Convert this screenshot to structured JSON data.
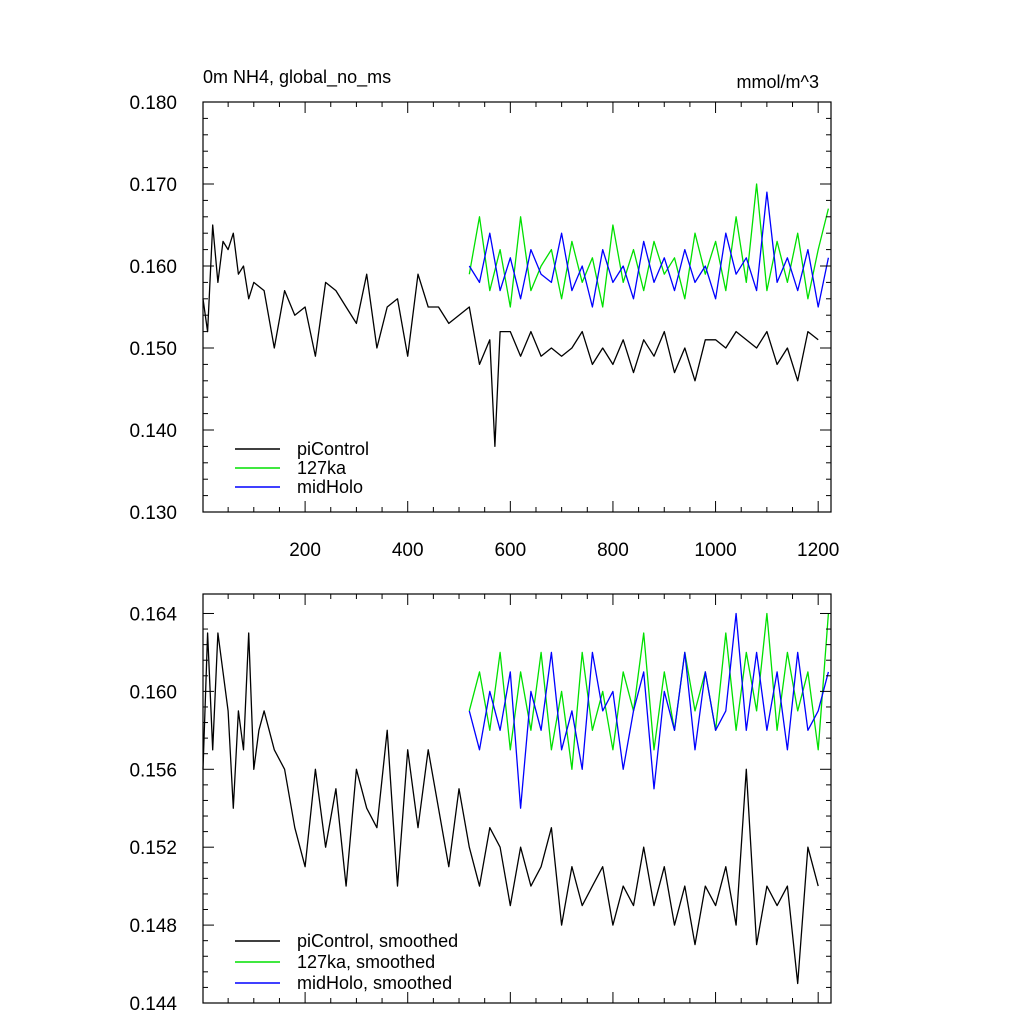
{
  "chart_data": [
    {
      "type": "line",
      "title": "0m NH4, global_no_ms",
      "unit_label": "mmol/m^3",
      "xlim": [
        1,
        1225
      ],
      "ylim": [
        0.13,
        0.18
      ],
      "xticks": [
        200,
        400,
        600,
        800,
        1000,
        1200
      ],
      "xtick_labels": [
        "200",
        "400",
        "600",
        "800",
        "1000",
        "1200"
      ],
      "yticks": [
        0.13,
        0.14,
        0.15,
        0.16,
        0.17,
        0.18
      ],
      "ytick_labels": [
        "0.130",
        "0.140",
        "0.150",
        "0.160",
        "0.170",
        "0.180"
      ],
      "grid": false,
      "legend_position": "bottom-left",
      "series": [
        {
          "name": "piControl",
          "color": "#000000",
          "x": [
            1,
            10,
            20,
            30,
            40,
            50,
            60,
            70,
            80,
            90,
            100,
            120,
            140,
            160,
            180,
            200,
            220,
            240,
            260,
            280,
            300,
            320,
            340,
            360,
            380,
            400,
            420,
            440,
            460,
            480,
            500,
            520,
            540,
            560,
            570,
            580,
            600,
            620,
            640,
            660,
            680,
            700,
            720,
            740,
            760,
            780,
            800,
            820,
            840,
            860,
            880,
            900,
            920,
            940,
            960,
            980,
            1000,
            1020,
            1040,
            1060,
            1080,
            1100,
            1120,
            1140,
            1160,
            1180,
            1200
          ],
          "y": [
            0.156,
            0.152,
            0.165,
            0.158,
            0.163,
            0.162,
            0.164,
            0.159,
            0.16,
            0.156,
            0.158,
            0.157,
            0.15,
            0.157,
            0.154,
            0.155,
            0.149,
            0.158,
            0.157,
            0.155,
            0.153,
            0.159,
            0.15,
            0.155,
            0.156,
            0.149,
            0.159,
            0.155,
            0.155,
            0.153,
            0.154,
            0.155,
            0.148,
            0.151,
            0.138,
            0.152,
            0.152,
            0.149,
            0.152,
            0.149,
            0.15,
            0.149,
            0.15,
            0.152,
            0.148,
            0.15,
            0.148,
            0.151,
            0.147,
            0.151,
            0.149,
            0.152,
            0.147,
            0.15,
            0.146,
            0.151,
            0.151,
            0.15,
            0.152,
            0.151,
            0.15,
            0.152,
            0.148,
            0.15,
            0.146,
            0.152,
            0.151
          ]
        },
        {
          "name": "127ka",
          "color": "#00e000",
          "x": [
            520,
            540,
            560,
            580,
            600,
            620,
            640,
            660,
            680,
            700,
            720,
            740,
            760,
            780,
            800,
            820,
            840,
            860,
            880,
            900,
            920,
            940,
            960,
            980,
            1000,
            1020,
            1040,
            1060,
            1080,
            1100,
            1120,
            1140,
            1160,
            1180,
            1200,
            1220
          ],
          "y": [
            0.159,
            0.166,
            0.157,
            0.162,
            0.155,
            0.166,
            0.157,
            0.16,
            0.162,
            0.156,
            0.163,
            0.158,
            0.161,
            0.155,
            0.165,
            0.158,
            0.162,
            0.157,
            0.163,
            0.159,
            0.161,
            0.156,
            0.164,
            0.159,
            0.163,
            0.157,
            0.166,
            0.158,
            0.17,
            0.157,
            0.163,
            0.158,
            0.164,
            0.156,
            0.162,
            0.167
          ]
        },
        {
          "name": "midHolo",
          "color": "#0000ff",
          "x": [
            520,
            540,
            560,
            580,
            600,
            620,
            640,
            660,
            680,
            700,
            720,
            740,
            760,
            780,
            800,
            820,
            840,
            860,
            880,
            900,
            920,
            940,
            960,
            980,
            1000,
            1020,
            1040,
            1060,
            1080,
            1100,
            1120,
            1140,
            1160,
            1180,
            1200,
            1220
          ],
          "y": [
            0.16,
            0.158,
            0.164,
            0.157,
            0.161,
            0.156,
            0.162,
            0.159,
            0.158,
            0.164,
            0.157,
            0.16,
            0.155,
            0.162,
            0.158,
            0.16,
            0.156,
            0.163,
            0.158,
            0.161,
            0.157,
            0.162,
            0.158,
            0.16,
            0.156,
            0.164,
            0.159,
            0.161,
            0.157,
            0.169,
            0.158,
            0.161,
            0.157,
            0.162,
            0.155,
            0.161
          ]
        }
      ]
    },
    {
      "type": "line",
      "title": "",
      "xlim": [
        1,
        1225
      ],
      "ylim": [
        0.144,
        0.165
      ],
      "xticks": [
        200,
        400,
        600,
        800,
        1000,
        1200
      ],
      "yticks": [
        0.144,
        0.148,
        0.152,
        0.156,
        0.16,
        0.164
      ],
      "ytick_labels": [
        "0.144",
        "0.148",
        "0.152",
        "0.156",
        "0.160",
        "0.164"
      ],
      "grid": false,
      "legend_position": "bottom-left",
      "series": [
        {
          "name": "piControl, smoothed",
          "color": "#000000",
          "x": [
            1,
            10,
            20,
            30,
            40,
            50,
            60,
            70,
            80,
            90,
            100,
            110,
            120,
            140,
            160,
            180,
            200,
            220,
            240,
            260,
            280,
            300,
            320,
            340,
            360,
            380,
            400,
            420,
            440,
            460,
            480,
            500,
            520,
            540,
            560,
            580,
            600,
            620,
            640,
            660,
            680,
            700,
            720,
            740,
            760,
            780,
            800,
            820,
            840,
            860,
            880,
            900,
            920,
            940,
            960,
            980,
            1000,
            1020,
            1040,
            1060,
            1080,
            1100,
            1120,
            1140,
            1160,
            1180,
            1200
          ],
          "y": [
            0.156,
            0.163,
            0.157,
            0.163,
            0.161,
            0.159,
            0.154,
            0.159,
            0.157,
            0.163,
            0.156,
            0.158,
            0.159,
            0.157,
            0.156,
            0.153,
            0.151,
            0.156,
            0.152,
            0.155,
            0.15,
            0.156,
            0.154,
            0.153,
            0.158,
            0.15,
            0.157,
            0.153,
            0.157,
            0.154,
            0.151,
            0.155,
            0.152,
            0.15,
            0.153,
            0.152,
            0.149,
            0.152,
            0.15,
            0.151,
            0.153,
            0.148,
            0.151,
            0.149,
            0.15,
            0.151,
            0.148,
            0.15,
            0.149,
            0.152,
            0.149,
            0.151,
            0.148,
            0.15,
            0.147,
            0.15,
            0.149,
            0.151,
            0.148,
            0.156,
            0.147,
            0.15,
            0.149,
            0.15,
            0.145,
            0.152,
            0.15
          ]
        },
        {
          "name": "127ka, smoothed",
          "color": "#00e000",
          "x": [
            520,
            540,
            560,
            580,
            600,
            620,
            640,
            660,
            680,
            700,
            720,
            740,
            760,
            780,
            800,
            820,
            840,
            860,
            880,
            900,
            920,
            940,
            960,
            980,
            1000,
            1020,
            1040,
            1060,
            1080,
            1100,
            1120,
            1140,
            1160,
            1180,
            1200,
            1220
          ],
          "y": [
            0.159,
            0.161,
            0.158,
            0.162,
            0.157,
            0.161,
            0.158,
            0.162,
            0.157,
            0.16,
            0.156,
            0.162,
            0.158,
            0.16,
            0.157,
            0.161,
            0.159,
            0.163,
            0.157,
            0.161,
            0.158,
            0.162,
            0.159,
            0.161,
            0.158,
            0.163,
            0.158,
            0.162,
            0.159,
            0.164,
            0.158,
            0.162,
            0.159,
            0.161,
            0.157,
            0.164
          ]
        },
        {
          "name": "midHolo, smoothed",
          "color": "#0000ff",
          "x": [
            520,
            540,
            560,
            580,
            600,
            620,
            640,
            660,
            680,
            700,
            720,
            740,
            760,
            780,
            800,
            820,
            840,
            860,
            880,
            900,
            920,
            940,
            960,
            980,
            1000,
            1020,
            1040,
            1060,
            1080,
            1100,
            1120,
            1140,
            1160,
            1180,
            1200,
            1220
          ],
          "y": [
            0.159,
            0.157,
            0.16,
            0.158,
            0.161,
            0.154,
            0.16,
            0.158,
            0.162,
            0.157,
            0.159,
            0.156,
            0.162,
            0.159,
            0.16,
            0.156,
            0.159,
            0.161,
            0.155,
            0.16,
            0.158,
            0.162,
            0.157,
            0.161,
            0.158,
            0.159,
            0.164,
            0.158,
            0.162,
            0.158,
            0.161,
            0.157,
            0.162,
            0.158,
            0.159,
            0.161
          ]
        }
      ]
    }
  ]
}
